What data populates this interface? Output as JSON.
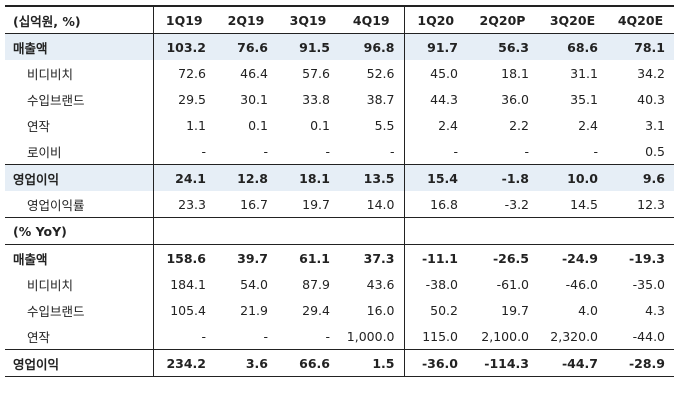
{
  "header": {
    "unit_label": "(십억원, %)",
    "columns": [
      "1Q19",
      "2Q19",
      "3Q19",
      "4Q19",
      "1Q20",
      "2Q20P",
      "3Q20E",
      "4Q20E"
    ]
  },
  "sections": {
    "main": {
      "revenue": {
        "label": "매출액",
        "values": [
          "103.2",
          "76.6",
          "91.5",
          "96.8",
          "91.7",
          "56.3",
          "68.6",
          "78.1"
        ]
      },
      "bdbc": {
        "label": "비디비치",
        "values": [
          "72.6",
          "46.4",
          "57.6",
          "52.6",
          "45.0",
          "18.1",
          "31.1",
          "34.2"
        ]
      },
      "import_brand": {
        "label": "수입브랜드",
        "values": [
          "29.5",
          "30.1",
          "33.8",
          "38.7",
          "44.3",
          "36.0",
          "35.1",
          "40.3"
        ]
      },
      "yeonjak": {
        "label": "연작",
        "values": [
          "1.1",
          "0.1",
          "0.1",
          "5.5",
          "2.4",
          "2.2",
          "2.4",
          "3.1"
        ]
      },
      "loivie": {
        "label": "로이비",
        "values": [
          "-",
          "-",
          "-",
          "-",
          "-",
          "-",
          "-",
          "0.5"
        ]
      },
      "op_profit": {
        "label": "영업이익",
        "values": [
          "24.1",
          "12.8",
          "18.1",
          "13.5",
          "15.4",
          "-1.8",
          "10.0",
          "9.6"
        ]
      },
      "op_margin": {
        "label": "영업이익률",
        "values": [
          "23.3",
          "16.7",
          "19.7",
          "14.0",
          "16.8",
          "-3.2",
          "14.5",
          "12.3"
        ]
      }
    },
    "yoy": {
      "title": "(% YoY)",
      "revenue": {
        "label": "매출액",
        "values": [
          "158.6",
          "39.7",
          "61.1",
          "37.3",
          "-11.1",
          "-26.5",
          "-24.9",
          "-19.3"
        ]
      },
      "bdbc": {
        "label": "비디비치",
        "values": [
          "184.1",
          "54.0",
          "87.9",
          "43.6",
          "-38.0",
          "-61.0",
          "-46.0",
          "-35.0"
        ]
      },
      "import_brand": {
        "label": "수입브랜드",
        "values": [
          "105.4",
          "21.9",
          "29.4",
          "16.0",
          "50.2",
          "19.7",
          "4.0",
          "4.3"
        ]
      },
      "yeonjak": {
        "label": "연작",
        "values": [
          "-",
          "-",
          "-",
          "1,000.0",
          "115.0",
          "2,100.0",
          "2,320.0",
          "-44.0"
        ]
      },
      "op_profit": {
        "label": "영업이익",
        "values": [
          "234.2",
          "3.6",
          "66.6",
          "1.5",
          "-36.0",
          "-114.3",
          "-44.7",
          "-28.9"
        ]
      }
    }
  },
  "colors": {
    "highlight_row": "#e6eef6",
    "rule": "#222222"
  }
}
